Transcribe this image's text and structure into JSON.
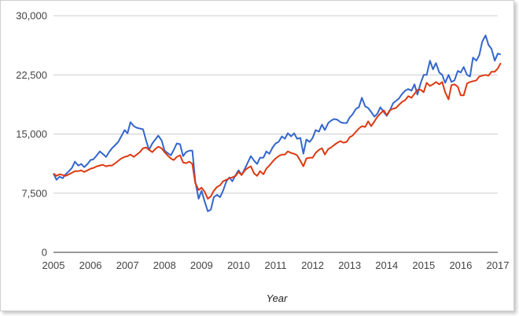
{
  "chart_data": {
    "type": "line",
    "title": "",
    "xlabel": "Year",
    "ylabel": "",
    "xlim": [
      2005,
      2017
    ],
    "ylim": [
      0,
      30000
    ],
    "y_ticks": [
      0,
      7500,
      15000,
      22500,
      30000
    ],
    "y_tick_labels": [
      "0",
      "7,500",
      "15,000",
      "22,500",
      "30,000"
    ],
    "x_ticks": [
      2005,
      2006,
      2007,
      2008,
      2009,
      2010,
      2011,
      2012,
      2013,
      2014,
      2015,
      2016,
      2017
    ],
    "x_tick_labels": [
      "2005",
      "2006",
      "2007",
      "2008",
      "2009",
      "2010",
      "2011",
      "2012",
      "2013",
      "2014",
      "2015",
      "2016",
      "2017"
    ],
    "grid": true,
    "legend": "none",
    "series": [
      {
        "color": "#3366cc",
        "points": [
          [
            2005.0,
            10000
          ],
          [
            2005.08,
            9200
          ],
          [
            2005.17,
            9600
          ],
          [
            2005.25,
            9400
          ],
          [
            2005.33,
            9900
          ],
          [
            2005.42,
            10300
          ],
          [
            2005.5,
            10700
          ],
          [
            2005.58,
            11500
          ],
          [
            2005.67,
            11000
          ],
          [
            2005.75,
            11200
          ],
          [
            2005.83,
            10800
          ],
          [
            2005.92,
            11200
          ],
          [
            2006.0,
            11700
          ],
          [
            2006.08,
            11800
          ],
          [
            2006.17,
            12300
          ],
          [
            2006.25,
            12800
          ],
          [
            2006.33,
            12500
          ],
          [
            2006.42,
            12100
          ],
          [
            2006.5,
            12700
          ],
          [
            2006.58,
            13200
          ],
          [
            2006.67,
            13600
          ],
          [
            2006.75,
            14000
          ],
          [
            2006.83,
            14700
          ],
          [
            2006.92,
            15500
          ],
          [
            2007.0,
            15100
          ],
          [
            2007.08,
            16500
          ],
          [
            2007.17,
            16000
          ],
          [
            2007.25,
            15800
          ],
          [
            2007.33,
            15700
          ],
          [
            2007.42,
            15600
          ],
          [
            2007.5,
            14200
          ],
          [
            2007.58,
            13000
          ],
          [
            2007.67,
            13800
          ],
          [
            2007.75,
            14300
          ],
          [
            2007.83,
            14800
          ],
          [
            2007.92,
            14200
          ],
          [
            2008.0,
            12900
          ],
          [
            2008.08,
            12600
          ],
          [
            2008.17,
            12300
          ],
          [
            2008.25,
            13000
          ],
          [
            2008.33,
            13800
          ],
          [
            2008.42,
            13700
          ],
          [
            2008.5,
            12200
          ],
          [
            2008.58,
            12700
          ],
          [
            2008.67,
            12900
          ],
          [
            2008.75,
            12900
          ],
          [
            2008.83,
            9000
          ],
          [
            2008.92,
            6800
          ],
          [
            2009.0,
            7800
          ],
          [
            2009.08,
            6500
          ],
          [
            2009.17,
            5200
          ],
          [
            2009.25,
            5400
          ],
          [
            2009.33,
            7000
          ],
          [
            2009.42,
            7300
          ],
          [
            2009.5,
            7000
          ],
          [
            2009.58,
            7800
          ],
          [
            2009.67,
            9000
          ],
          [
            2009.75,
            9500
          ],
          [
            2009.83,
            9000
          ],
          [
            2009.92,
            9800
          ],
          [
            2010.0,
            10400
          ],
          [
            2010.08,
            9800
          ],
          [
            2010.17,
            10600
          ],
          [
            2010.25,
            11400
          ],
          [
            2010.33,
            12200
          ],
          [
            2010.42,
            11600
          ],
          [
            2010.5,
            11200
          ],
          [
            2010.58,
            12000
          ],
          [
            2010.67,
            12000
          ],
          [
            2010.75,
            12800
          ],
          [
            2010.83,
            12500
          ],
          [
            2010.92,
            13300
          ],
          [
            2011.0,
            13800
          ],
          [
            2011.08,
            14000
          ],
          [
            2011.17,
            14700
          ],
          [
            2011.25,
            14400
          ],
          [
            2011.33,
            15100
          ],
          [
            2011.42,
            14700
          ],
          [
            2011.5,
            15100
          ],
          [
            2011.58,
            14400
          ],
          [
            2011.67,
            14500
          ],
          [
            2011.75,
            12500
          ],
          [
            2011.83,
            14300
          ],
          [
            2011.92,
            14000
          ],
          [
            2012.0,
            14500
          ],
          [
            2012.08,
            15500
          ],
          [
            2012.17,
            15300
          ],
          [
            2012.25,
            16200
          ],
          [
            2012.33,
            15500
          ],
          [
            2012.42,
            16400
          ],
          [
            2012.5,
            16700
          ],
          [
            2012.58,
            16900
          ],
          [
            2012.67,
            16800
          ],
          [
            2012.75,
            16500
          ],
          [
            2012.83,
            16400
          ],
          [
            2012.92,
            16400
          ],
          [
            2013.0,
            17100
          ],
          [
            2013.08,
            17500
          ],
          [
            2013.17,
            18200
          ],
          [
            2013.25,
            18400
          ],
          [
            2013.33,
            19600
          ],
          [
            2013.42,
            18500
          ],
          [
            2013.5,
            18300
          ],
          [
            2013.58,
            17800
          ],
          [
            2013.67,
            17200
          ],
          [
            2013.75,
            17600
          ],
          [
            2013.83,
            18400
          ],
          [
            2013.92,
            17800
          ],
          [
            2014.0,
            17300
          ],
          [
            2014.08,
            17900
          ],
          [
            2014.17,
            18900
          ],
          [
            2014.25,
            19200
          ],
          [
            2014.33,
            19500
          ],
          [
            2014.42,
            20100
          ],
          [
            2014.5,
            20500
          ],
          [
            2014.58,
            20700
          ],
          [
            2014.67,
            20500
          ],
          [
            2014.75,
            21300
          ],
          [
            2014.83,
            20000
          ],
          [
            2014.92,
            21500
          ],
          [
            2015.0,
            22500
          ],
          [
            2015.08,
            22500
          ],
          [
            2015.17,
            24300
          ],
          [
            2015.25,
            23200
          ],
          [
            2015.33,
            24000
          ],
          [
            2015.42,
            22800
          ],
          [
            2015.5,
            22500
          ],
          [
            2015.58,
            21500
          ],
          [
            2015.67,
            22500
          ],
          [
            2015.75,
            21600
          ],
          [
            2015.83,
            21800
          ],
          [
            2015.92,
            23000
          ],
          [
            2016.0,
            22800
          ],
          [
            2016.08,
            23500
          ],
          [
            2016.17,
            22500
          ],
          [
            2016.25,
            22300
          ],
          [
            2016.33,
            24700
          ],
          [
            2016.42,
            24300
          ],
          [
            2016.5,
            25000
          ],
          [
            2016.58,
            26700
          ],
          [
            2016.67,
            27500
          ],
          [
            2016.75,
            26300
          ],
          [
            2016.83,
            25800
          ],
          [
            2016.92,
            24300
          ],
          [
            2017.0,
            25200
          ],
          [
            2017.08,
            25100
          ]
        ]
      },
      {
        "color": "#dc3912",
        "points": [
          [
            2005.0,
            10000
          ],
          [
            2005.08,
            9700
          ],
          [
            2005.17,
            9900
          ],
          [
            2005.25,
            9800
          ],
          [
            2005.33,
            9700
          ],
          [
            2005.42,
            9900
          ],
          [
            2005.5,
            10100
          ],
          [
            2005.58,
            10300
          ],
          [
            2005.67,
            10300
          ],
          [
            2005.75,
            10400
          ],
          [
            2005.83,
            10200
          ],
          [
            2005.92,
            10400
          ],
          [
            2006.0,
            10600
          ],
          [
            2006.08,
            10700
          ],
          [
            2006.17,
            10900
          ],
          [
            2006.25,
            11000
          ],
          [
            2006.33,
            11100
          ],
          [
            2006.42,
            10900
          ],
          [
            2006.5,
            11000
          ],
          [
            2006.58,
            11000
          ],
          [
            2006.67,
            11300
          ],
          [
            2006.75,
            11600
          ],
          [
            2006.83,
            11900
          ],
          [
            2006.92,
            12100
          ],
          [
            2007.0,
            12200
          ],
          [
            2007.08,
            12400
          ],
          [
            2007.17,
            12100
          ],
          [
            2007.25,
            12400
          ],
          [
            2007.33,
            12700
          ],
          [
            2007.42,
            13200
          ],
          [
            2007.5,
            13300
          ],
          [
            2007.58,
            13000
          ],
          [
            2007.67,
            12700
          ],
          [
            2007.75,
            13100
          ],
          [
            2007.83,
            13400
          ],
          [
            2007.92,
            13200
          ],
          [
            2008.0,
            12700
          ],
          [
            2008.08,
            12300
          ],
          [
            2008.17,
            11900
          ],
          [
            2008.25,
            11700
          ],
          [
            2008.33,
            12100
          ],
          [
            2008.42,
            12300
          ],
          [
            2008.5,
            11400
          ],
          [
            2008.58,
            11300
          ],
          [
            2008.67,
            11500
          ],
          [
            2008.75,
            11200
          ],
          [
            2008.83,
            8800
          ],
          [
            2008.92,
            7900
          ],
          [
            2009.0,
            8200
          ],
          [
            2009.08,
            7700
          ],
          [
            2009.17,
            6800
          ],
          [
            2009.25,
            7100
          ],
          [
            2009.33,
            7800
          ],
          [
            2009.42,
            8300
          ],
          [
            2009.5,
            8500
          ],
          [
            2009.58,
            9000
          ],
          [
            2009.67,
            9200
          ],
          [
            2009.75,
            9400
          ],
          [
            2009.83,
            9500
          ],
          [
            2009.92,
            9700
          ],
          [
            2010.0,
            10200
          ],
          [
            2010.08,
            9800
          ],
          [
            2010.17,
            10400
          ],
          [
            2010.25,
            10700
          ],
          [
            2010.33,
            10900
          ],
          [
            2010.42,
            10000
          ],
          [
            2010.5,
            9700
          ],
          [
            2010.58,
            10300
          ],
          [
            2010.67,
            9900
          ],
          [
            2010.75,
            10600
          ],
          [
            2010.83,
            11000
          ],
          [
            2010.92,
            11500
          ],
          [
            2011.0,
            11900
          ],
          [
            2011.08,
            12200
          ],
          [
            2011.17,
            12400
          ],
          [
            2011.25,
            12400
          ],
          [
            2011.33,
            12800
          ],
          [
            2011.42,
            12600
          ],
          [
            2011.5,
            12500
          ],
          [
            2011.58,
            12300
          ],
          [
            2011.67,
            11600
          ],
          [
            2011.75,
            10900
          ],
          [
            2011.83,
            11900
          ],
          [
            2011.92,
            12000
          ],
          [
            2012.0,
            12000
          ],
          [
            2012.08,
            12600
          ],
          [
            2012.17,
            13000
          ],
          [
            2012.25,
            13200
          ],
          [
            2012.33,
            12400
          ],
          [
            2012.42,
            13100
          ],
          [
            2012.5,
            13300
          ],
          [
            2012.58,
            13600
          ],
          [
            2012.67,
            13900
          ],
          [
            2012.75,
            14100
          ],
          [
            2012.83,
            13900
          ],
          [
            2012.92,
            14000
          ],
          [
            2013.0,
            14600
          ],
          [
            2013.08,
            14800
          ],
          [
            2013.17,
            15300
          ],
          [
            2013.25,
            15700
          ],
          [
            2013.33,
            16000
          ],
          [
            2013.42,
            15900
          ],
          [
            2013.5,
            16600
          ],
          [
            2013.58,
            16000
          ],
          [
            2013.67,
            16600
          ],
          [
            2013.75,
            17200
          ],
          [
            2013.83,
            17600
          ],
          [
            2013.92,
            18000
          ],
          [
            2014.0,
            17400
          ],
          [
            2014.08,
            18000
          ],
          [
            2014.17,
            18200
          ],
          [
            2014.25,
            18300
          ],
          [
            2014.33,
            18700
          ],
          [
            2014.42,
            19100
          ],
          [
            2014.5,
            19300
          ],
          [
            2014.58,
            19800
          ],
          [
            2014.67,
            19600
          ],
          [
            2014.75,
            20100
          ],
          [
            2014.83,
            20600
          ],
          [
            2014.92,
            20600
          ],
          [
            2015.0,
            20300
          ],
          [
            2015.08,
            21500
          ],
          [
            2015.17,
            21100
          ],
          [
            2015.25,
            21300
          ],
          [
            2015.33,
            21600
          ],
          [
            2015.42,
            21300
          ],
          [
            2015.5,
            21600
          ],
          [
            2015.58,
            20300
          ],
          [
            2015.67,
            19400
          ],
          [
            2015.75,
            21200
          ],
          [
            2015.83,
            21300
          ],
          [
            2015.92,
            21000
          ],
          [
            2016.0,
            19900
          ],
          [
            2016.08,
            19900
          ],
          [
            2016.17,
            21400
          ],
          [
            2016.25,
            21600
          ],
          [
            2016.33,
            21700
          ],
          [
            2016.42,
            21800
          ],
          [
            2016.5,
            22300
          ],
          [
            2016.58,
            22400
          ],
          [
            2016.67,
            22500
          ],
          [
            2016.75,
            22400
          ],
          [
            2016.83,
            22900
          ],
          [
            2016.92,
            22900
          ],
          [
            2017.0,
            23300
          ],
          [
            2017.08,
            24000
          ]
        ]
      }
    ]
  }
}
